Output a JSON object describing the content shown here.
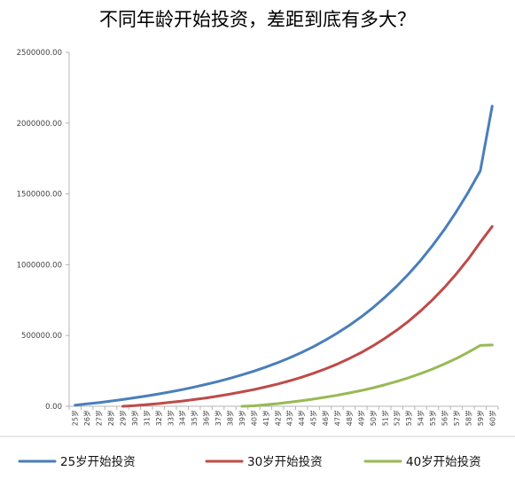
{
  "title": "不同年龄开始投资，差距到底有多大？",
  "chart_data": {
    "type": "line",
    "title": "不同年龄开始投资，差距到底有多大？",
    "x": [
      "25岁",
      "26岁",
      "27岁",
      "28岁",
      "29岁",
      "30岁",
      "31岁",
      "32岁",
      "33岁",
      "34岁",
      "35岁",
      "36岁",
      "37岁",
      "38岁",
      "39岁",
      "40岁",
      "41岁",
      "42岁",
      "43岁",
      "44岁",
      "45岁",
      "46岁",
      "47岁",
      "48岁",
      "49岁",
      "50岁",
      "51岁",
      "52岁",
      "53岁",
      "54岁",
      "55岁",
      "56岁",
      "57岁",
      "58岁",
      "59岁",
      "60岁"
    ],
    "y_ticks": [
      "0.00",
      "500000.00",
      "1000000.00",
      "1500000.00",
      "2000000.00",
      "2500000.00"
    ],
    "ylim": [
      0,
      2500000
    ],
    "grid": false,
    "legend_position": "bottom",
    "series": [
      {
        "name": "25岁开始投资",
        "color": "#4a7ebb",
        "values": [
          8000,
          17000,
          26000,
          37000,
          48000,
          60000,
          73000,
          87000,
          102000,
          118000,
          136000,
          155000,
          175000,
          198000,
          222000,
          248000,
          277000,
          308000,
          342000,
          380000,
          421000,
          467000,
          517000,
          571000,
          631000,
          697000,
          770000,
          849000,
          936000,
          1031000,
          1136000,
          1250000,
          1376000,
          1513000,
          1663000,
          2120000
        ]
      },
      {
        "name": "30岁开始投资",
        "color": "#be4b48",
        "values": [
          0,
          0,
          0,
          0,
          0,
          5000,
          12000,
          19000,
          28000,
          37000,
          48000,
          59000,
          72000,
          86000,
          102000,
          118000,
          137000,
          157000,
          180000,
          205000,
          233000,
          264000,
          298000,
          337000,
          379000,
          427000,
          480000,
          538000,
          602000,
          674000,
          753000,
          840000,
          936000,
          1041000,
          1158000,
          1270000
        ]
      },
      {
        "name": "40岁开始投资",
        "color": "#98b954",
        "values": [
          0,
          0,
          0,
          0,
          0,
          0,
          0,
          0,
          0,
          0,
          0,
          0,
          0,
          0,
          0,
          3000,
          11000,
          19000,
          29000,
          39000,
          51000,
          64000,
          78000,
          94000,
          111000,
          130000,
          152000,
          176000,
          202000,
          231000,
          263000,
          299000,
          338000,
          382000,
          430000,
          433000
        ]
      }
    ]
  }
}
